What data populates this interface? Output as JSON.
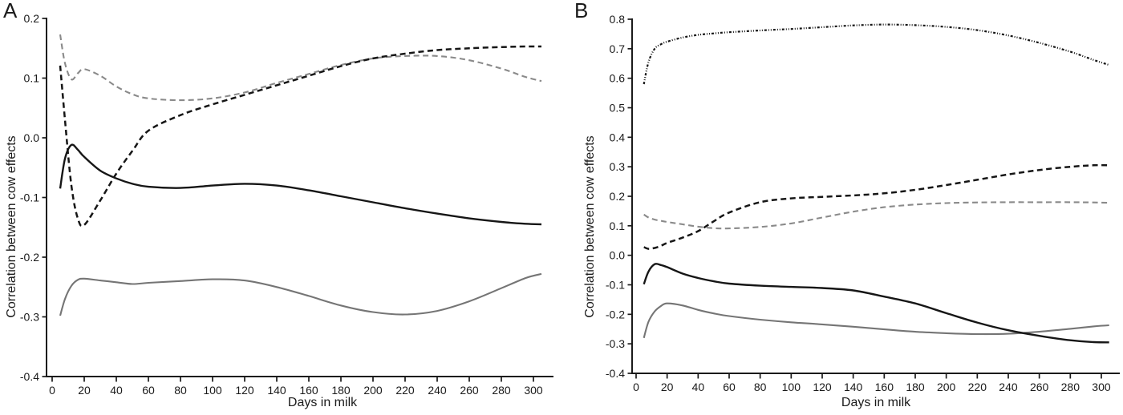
{
  "figure": {
    "background_color": "#ffffff",
    "axis_color": "#1a1a1a",
    "text_color": "#1a1a1a"
  },
  "chart_data": [
    {
      "type": "line",
      "panel_label": "A",
      "xlabel": "Days in milk",
      "ylabel": "Correlation between cow effects",
      "xlim": [
        0,
        312
      ],
      "ylim": [
        -0.4,
        0.2
      ],
      "grid": false,
      "legend": "none",
      "xticks": [
        0,
        20,
        40,
        60,
        80,
        100,
        120,
        140,
        160,
        180,
        200,
        220,
        240,
        260,
        280,
        300
      ],
      "yticks": [
        0.2,
        0.1,
        0.0,
        -0.1,
        -0.2,
        -0.3,
        -0.4
      ],
      "x": [
        5,
        8,
        12,
        16,
        20,
        30,
        40,
        50,
        60,
        80,
        100,
        120,
        140,
        160,
        180,
        200,
        220,
        240,
        260,
        280,
        295,
        305
      ],
      "series": [
        {
          "name": "gray-dashed",
          "line_style": "dashed",
          "color": "#8a8a8a",
          "width": 2.1,
          "values": [
            0.173,
            0.125,
            0.098,
            0.108,
            0.115,
            0.104,
            0.086,
            0.073,
            0.066,
            0.063,
            0.066,
            0.076,
            0.092,
            0.107,
            0.122,
            0.133,
            0.137,
            0.137,
            0.13,
            0.116,
            0.102,
            0.095
          ]
        },
        {
          "name": "gray-solid",
          "line_style": "solid",
          "color": "#757575",
          "width": 2.1,
          "values": [
            -0.298,
            -0.27,
            -0.248,
            -0.238,
            -0.236,
            -0.239,
            -0.242,
            -0.245,
            -0.243,
            -0.24,
            -0.237,
            -0.239,
            -0.25,
            -0.265,
            -0.281,
            -0.292,
            -0.296,
            -0.29,
            -0.274,
            -0.252,
            -0.235,
            -0.228
          ]
        },
        {
          "name": "black-dashed",
          "line_style": "dashed",
          "color": "#161616",
          "width": 2.5,
          "values": [
            0.121,
            0.03,
            -0.08,
            -0.135,
            -0.146,
            -0.105,
            -0.06,
            -0.022,
            0.012,
            0.038,
            0.056,
            0.072,
            0.088,
            0.104,
            0.12,
            0.133,
            0.141,
            0.147,
            0.15,
            0.152,
            0.153,
            0.153
          ]
        },
        {
          "name": "black-solid",
          "line_style": "solid",
          "color": "#161616",
          "width": 2.4,
          "values": [
            -0.085,
            -0.035,
            -0.012,
            -0.02,
            -0.032,
            -0.055,
            -0.068,
            -0.077,
            -0.082,
            -0.084,
            -0.08,
            -0.077,
            -0.08,
            -0.088,
            -0.098,
            -0.108,
            -0.118,
            -0.127,
            -0.135,
            -0.141,
            -0.144,
            -0.145
          ]
        }
      ]
    },
    {
      "type": "line",
      "panel_label": "B",
      "xlabel": "Days in milk",
      "ylabel": "Correlation between cow effects",
      "xlim": [
        0,
        312
      ],
      "ylim": [
        -0.4,
        0.8
      ],
      "grid": false,
      "legend": "none",
      "xticks": [
        0,
        20,
        40,
        60,
        80,
        100,
        120,
        140,
        160,
        180,
        200,
        220,
        240,
        260,
        280,
        300
      ],
      "yticks": [
        0.8,
        0.7,
        0.6,
        0.5,
        0.4,
        0.3,
        0.2,
        0.1,
        0.0,
        -0.1,
        -0.2,
        -0.3,
        -0.4
      ],
      "x": [
        5,
        8,
        12,
        16,
        20,
        30,
        40,
        50,
        60,
        80,
        100,
        120,
        140,
        160,
        180,
        200,
        220,
        240,
        260,
        280,
        295,
        305
      ],
      "series": [
        {
          "name": "gray-dashed",
          "line_style": "dashed",
          "color": "#8a8a8a",
          "width": 2.1,
          "values": [
            0.138,
            0.128,
            0.121,
            0.117,
            0.113,
            0.105,
            0.097,
            0.092,
            0.091,
            0.096,
            0.108,
            0.128,
            0.148,
            0.163,
            0.172,
            0.177,
            0.179,
            0.18,
            0.18,
            0.18,
            0.179,
            0.178
          ]
        },
        {
          "name": "gray-solid",
          "line_style": "solid",
          "color": "#757575",
          "width": 2.1,
          "values": [
            -0.28,
            -0.225,
            -0.19,
            -0.172,
            -0.163,
            -0.17,
            -0.185,
            -0.197,
            -0.206,
            -0.218,
            -0.227,
            -0.234,
            -0.242,
            -0.251,
            -0.259,
            -0.264,
            -0.267,
            -0.266,
            -0.259,
            -0.249,
            -0.241,
            -0.237
          ]
        },
        {
          "name": "black-dash-dot-dot",
          "line_style": "dash-dot-dot",
          "color": "#161616",
          "width": 2.2,
          "values": [
            0.58,
            0.655,
            0.7,
            0.715,
            0.724,
            0.738,
            0.747,
            0.752,
            0.756,
            0.762,
            0.767,
            0.773,
            0.779,
            0.782,
            0.78,
            0.774,
            0.763,
            0.745,
            0.72,
            0.69,
            0.662,
            0.645
          ]
        },
        {
          "name": "black-dashed",
          "line_style": "dashed",
          "color": "#161616",
          "width": 2.5,
          "values": [
            0.028,
            0.022,
            0.025,
            0.032,
            0.042,
            0.06,
            0.082,
            0.115,
            0.145,
            0.18,
            0.193,
            0.198,
            0.203,
            0.21,
            0.222,
            0.238,
            0.256,
            0.274,
            0.289,
            0.3,
            0.305,
            0.305
          ]
        },
        {
          "name": "black-solid",
          "line_style": "solid",
          "color": "#161616",
          "width": 2.4,
          "values": [
            -0.098,
            -0.055,
            -0.03,
            -0.033,
            -0.04,
            -0.062,
            -0.077,
            -0.088,
            -0.096,
            -0.103,
            -0.107,
            -0.111,
            -0.119,
            -0.14,
            -0.163,
            -0.196,
            -0.228,
            -0.254,
            -0.273,
            -0.288,
            -0.294,
            -0.295
          ]
        }
      ]
    }
  ]
}
